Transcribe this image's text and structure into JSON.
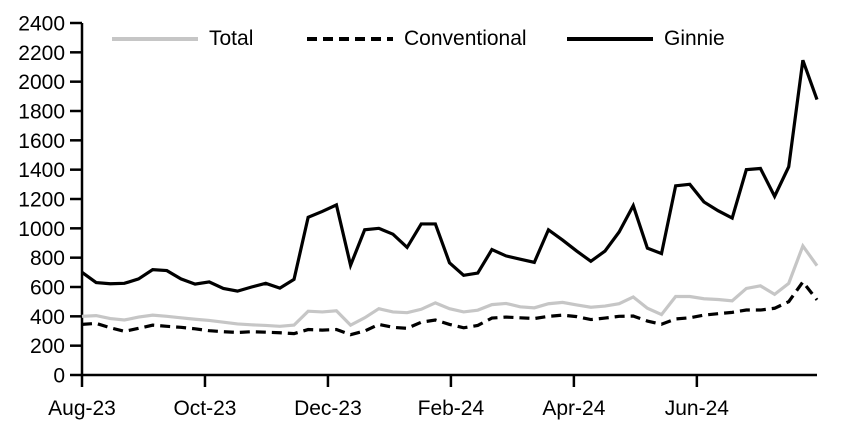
{
  "chart_data": {
    "type": "line",
    "title": "",
    "xlabel": "",
    "ylabel": "",
    "x_unit": "weeks (weekly observations, Aug-2023 through early Aug-2024)",
    "xlim": [
      0,
      52
    ],
    "ylim": [
      0,
      2400
    ],
    "y_tick_step": 200,
    "y_tick_labels": [
      "0",
      "200",
      "400",
      "600",
      "800",
      "1000",
      "1200",
      "1400",
      "1600",
      "1800",
      "2000",
      "2200",
      "2400"
    ],
    "x_ticks": [
      {
        "label": "Aug-23",
        "week": 0
      },
      {
        "label": "Oct-23",
        "week": 8.7
      },
      {
        "label": "Dec-23",
        "week": 17.4
      },
      {
        "label": "Feb-24",
        "week": 26.1
      },
      {
        "label": "Apr-24",
        "week": 34.8
      },
      {
        "label": "Jun-24",
        "week": 43.5
      }
    ],
    "grid": false,
    "legend_position": "top",
    "axis_color": "#000000",
    "background_color": "#ffffff",
    "series": [
      {
        "name": "Total",
        "color": "#c6c6c6",
        "dash": null,
        "line_width": 3.2,
        "values": [
          400,
          405,
          385,
          375,
          395,
          408,
          400,
          390,
          380,
          372,
          360,
          348,
          342,
          338,
          332,
          340,
          435,
          430,
          438,
          340,
          390,
          452,
          430,
          425,
          448,
          492,
          452,
          430,
          442,
          480,
          488,
          465,
          458,
          486,
          495,
          478,
          462,
          470,
          486,
          532,
          455,
          412,
          535,
          535,
          520,
          515,
          506,
          590,
          608,
          550,
          625,
          880,
          745
        ]
      },
      {
        "name": "Conventional",
        "color": "#000000",
        "dash": [
          10,
          6
        ],
        "line_width": 3.2,
        "values": [
          345,
          352,
          322,
          298,
          318,
          340,
          332,
          325,
          315,
          302,
          295,
          290,
          295,
          292,
          288,
          282,
          310,
          306,
          310,
          275,
          300,
          345,
          325,
          318,
          360,
          375,
          345,
          322,
          338,
          388,
          395,
          390,
          385,
          400,
          408,
          398,
          378,
          388,
          400,
          402,
          368,
          346,
          382,
          390,
          408,
          418,
          427,
          443,
          443,
          455,
          500,
          635,
          512
        ]
      },
      {
        "name": "Ginnie",
        "color": "#000000",
        "dash": null,
        "line_width": 3.2,
        "values": [
          700,
          630,
          622,
          625,
          655,
          718,
          712,
          655,
          620,
          635,
          590,
          572,
          600,
          625,
          592,
          652,
          1075,
          1115,
          1160,
          748,
          990,
          1000,
          960,
          870,
          1030,
          1030,
          765,
          680,
          695,
          855,
          812,
          790,
          768,
          990,
          920,
          845,
          775,
          845,
          975,
          1155,
          865,
          828,
          1290,
          1300,
          1180,
          1120,
          1070,
          1400,
          1408,
          1218,
          1420,
          2146,
          1878
        ]
      }
    ]
  }
}
